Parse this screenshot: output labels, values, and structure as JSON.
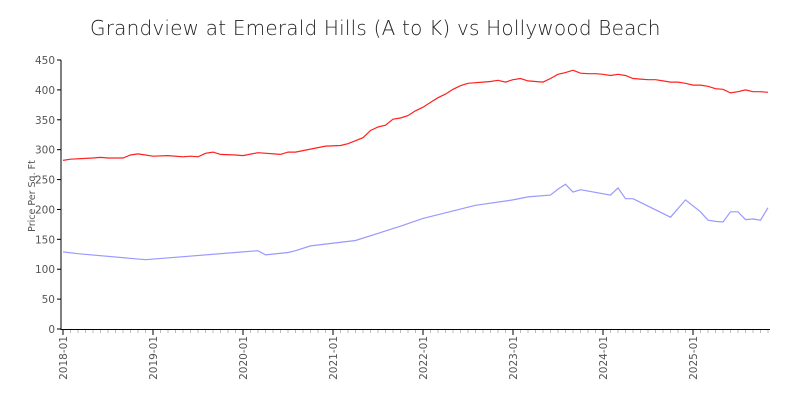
{
  "chart_data": {
    "type": "line",
    "title": "Grandview at Emerald Hills (A to K) vs Hollywood Beach",
    "xlabel": "",
    "ylabel": "Price Per Sq. Ft",
    "ylim": [
      0,
      450
    ],
    "xlim": [
      "2018-01",
      "2025-11"
    ],
    "yticks": [
      "0",
      "50",
      "100",
      "150",
      "200",
      "250",
      "300",
      "350",
      "400",
      "450"
    ],
    "xticks": [
      "2018-01",
      "2019-01",
      "2020-01",
      "2021-01",
      "2022-01",
      "2023-01",
      "2024-01",
      "2025-01"
    ],
    "grid": false,
    "legend": "none",
    "series": [
      {
        "color": "#ff2020",
        "points": [
          [
            "2018-01",
            282
          ],
          [
            "2018-02",
            284
          ],
          [
            "2018-05",
            286
          ],
          [
            "2018-06",
            287
          ],
          [
            "2018-07",
            286
          ],
          [
            "2018-09",
            286
          ],
          [
            "2018-10",
            291
          ],
          [
            "2018-11",
            293
          ],
          [
            "2018-12",
            291
          ],
          [
            "2019-01",
            289
          ],
          [
            "2019-03",
            290
          ],
          [
            "2019-05",
            288
          ],
          [
            "2019-06",
            289
          ],
          [
            "2019-07",
            288
          ],
          [
            "2019-08",
            294
          ],
          [
            "2019-09",
            296
          ],
          [
            "2019-10",
            292
          ],
          [
            "2019-12",
            291
          ],
          [
            "2020-01",
            290
          ],
          [
            "2020-03",
            295
          ],
          [
            "2020-06",
            292
          ],
          [
            "2020-07",
            296
          ],
          [
            "2020-08",
            296
          ],
          [
            "2020-10",
            301
          ],
          [
            "2020-12",
            306
          ],
          [
            "2021-02",
            307
          ],
          [
            "2021-03",
            310
          ],
          [
            "2021-04",
            315
          ],
          [
            "2021-05",
            320
          ],
          [
            "2021-06",
            332
          ],
          [
            "2021-07",
            338
          ],
          [
            "2021-08",
            341
          ],
          [
            "2021-09",
            351
          ],
          [
            "2021-10",
            353
          ],
          [
            "2021-11",
            357
          ],
          [
            "2021-12",
            365
          ],
          [
            "2022-01",
            371
          ],
          [
            "2022-02",
            379
          ],
          [
            "2022-03",
            387
          ],
          [
            "2022-04",
            393
          ],
          [
            "2022-05",
            401
          ],
          [
            "2022-06",
            407
          ],
          [
            "2022-07",
            411
          ],
          [
            "2022-08",
            412
          ],
          [
            "2022-09",
            413
          ],
          [
            "2022-10",
            414
          ],
          [
            "2022-11",
            416
          ],
          [
            "2022-12",
            413
          ],
          [
            "2023-01",
            417
          ],
          [
            "2023-02",
            419
          ],
          [
            "2023-03",
            415
          ],
          [
            "2023-04",
            414
          ],
          [
            "2023-05",
            413
          ],
          [
            "2023-06",
            419
          ],
          [
            "2023-07",
            426
          ],
          [
            "2023-08",
            429
          ],
          [
            "2023-09",
            433
          ],
          [
            "2023-10",
            428
          ],
          [
            "2023-11",
            427
          ],
          [
            "2023-12",
            427
          ],
          [
            "2024-01",
            426
          ],
          [
            "2024-02",
            424
          ],
          [
            "2024-03",
            426
          ],
          [
            "2024-04",
            424
          ],
          [
            "2024-05",
            419
          ],
          [
            "2024-06",
            418
          ],
          [
            "2024-07",
            417
          ],
          [
            "2024-08",
            417
          ],
          [
            "2024-09",
            415
          ],
          [
            "2024-10",
            413
          ],
          [
            "2024-11",
            413
          ],
          [
            "2024-12",
            411
          ],
          [
            "2025-01",
            408
          ],
          [
            "2025-02",
            408
          ],
          [
            "2025-03",
            406
          ],
          [
            "2025-04",
            402
          ],
          [
            "2025-05",
            401
          ],
          [
            "2025-06",
            395
          ],
          [
            "2025-07",
            397
          ],
          [
            "2025-08",
            400
          ],
          [
            "2025-09",
            397
          ],
          [
            "2025-10",
            397
          ],
          [
            "2025-11",
            396
          ]
        ]
      },
      {
        "color": "#9999ff",
        "points": [
          [
            "2018-01",
            129
          ],
          [
            "2018-03",
            126
          ],
          [
            "2018-12",
            116
          ],
          [
            "2020-01",
            129
          ],
          [
            "2020-03",
            131
          ],
          [
            "2020-04",
            124
          ],
          [
            "2020-07",
            128
          ],
          [
            "2020-08",
            131
          ],
          [
            "2020-10",
            139
          ],
          [
            "2021-04",
            148
          ],
          [
            "2021-10",
            172
          ],
          [
            "2022-01",
            185
          ],
          [
            "2022-08",
            207
          ],
          [
            "2023-01",
            216
          ],
          [
            "2023-03",
            221
          ],
          [
            "2023-06",
            224
          ],
          [
            "2023-07",
            234
          ],
          [
            "2023-08",
            242
          ],
          [
            "2023-09",
            229
          ],
          [
            "2023-10",
            233
          ],
          [
            "2024-02",
            224
          ],
          [
            "2024-03",
            236
          ],
          [
            "2024-04",
            218
          ],
          [
            "2024-05",
            218
          ],
          [
            "2024-10",
            187
          ],
          [
            "2024-12",
            216
          ],
          [
            "2025-02",
            196
          ],
          [
            "2025-03",
            182
          ],
          [
            "2025-04",
            180
          ],
          [
            "2025-05",
            179
          ],
          [
            "2025-06",
            196
          ],
          [
            "2025-07",
            196
          ],
          [
            "2025-08",
            183
          ],
          [
            "2025-09",
            184
          ],
          [
            "2025-10",
            182
          ],
          [
            "2025-11",
            203
          ]
        ]
      }
    ]
  }
}
